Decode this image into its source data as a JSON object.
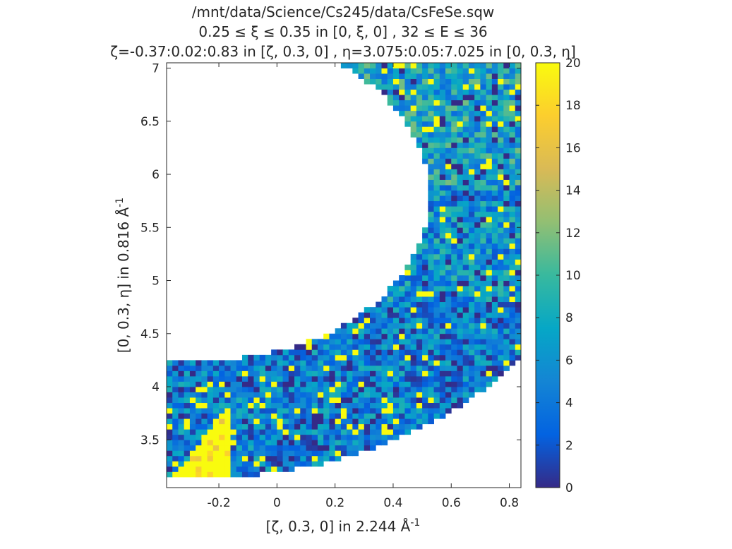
{
  "chart_data": {
    "type": "heatmap",
    "title_lines": [
      "/mnt/data/Science/Cs245/data/CsFeSe.sqw",
      "0.25 ≤ ξ ≤ 0.35 in [0, ξ, 0] , 32 ≤ E ≤ 36",
      "ζ=-0.37:0.02:0.83 in [ζ, 0.3, 0] , η=3.075:0.05:7.025 in [0, 0.3, η]"
    ],
    "xlabel": "[ζ, 0.3, 0] in 2.244 Å",
    "xlabel_sup": "-1",
    "ylabel": "[0, 0.3, η] in 0.816 Å",
    "ylabel_sup": "-1",
    "xlim": [
      -0.38,
      0.84
    ],
    "ylim": [
      3.05,
      7.05
    ],
    "x_ticks": [
      -0.2,
      0,
      0.2,
      0.4,
      0.6,
      0.8
    ],
    "x_tick_labels": [
      "-0.2",
      "0",
      "0.2",
      "0.4",
      "0.6",
      "0.8"
    ],
    "y_ticks": [
      3.5,
      4,
      4.5,
      5,
      5.5,
      6,
      6.5,
      7
    ],
    "y_tick_labels": [
      "3.5",
      "4",
      "4.5",
      "5",
      "5.5",
      "6",
      "6.5",
      "7"
    ],
    "colorbar": {
      "range": [
        0,
        20
      ],
      "ticks": [
        0,
        2,
        4,
        6,
        8,
        10,
        12,
        14,
        16,
        18,
        20
      ],
      "tick_labels": [
        "0",
        "2",
        "4",
        "6",
        "8",
        "10",
        "12",
        "14",
        "16",
        "18",
        "20"
      ],
      "colormap": "parula"
    },
    "grid": {
      "zeta_start": -0.37,
      "zeta_step": 0.02,
      "zeta_end": 0.83,
      "eta_start": 3.075,
      "eta_step": 0.05,
      "eta_end": 7.025
    },
    "coverage_description": "curved arc-shaped detector coverage from lower-left (ζ≈-0.37, η≈3.3) sweeping up to the right edge (ζ≈0.83, η≈5.2) and up to η≈7",
    "typical_intensity": 5,
    "high_intensity_region": "lower-left corner near ζ≈-0.3 to -0.15, η≈3.3 to 3.9 saturated at 20"
  }
}
